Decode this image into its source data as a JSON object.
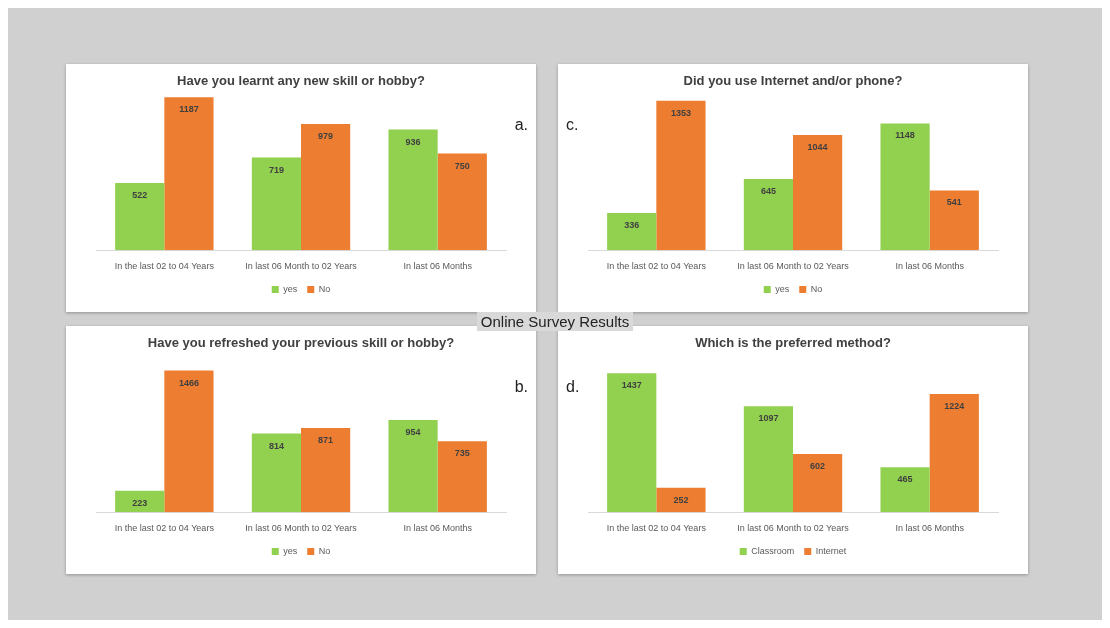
{
  "chart_data": [
    {
      "type": "bar",
      "title": "Have you learnt any new skill or hobby?",
      "categories": [
        "In the last 02 to 04 Years",
        "In last 06 Month to 02 Years",
        "In last 06 Months"
      ],
      "series": [
        {
          "name": "yes",
          "color": "#92d050",
          "values": [
            522,
            719,
            936
          ]
        },
        {
          "name": "No",
          "color": "#ed7d31",
          "values": [
            1187,
            979,
            750
          ]
        }
      ],
      "data_labels": true,
      "legend": "bottom",
      "grid": false,
      "annotations": [
        "a.",
        "Online Survey Results"
      ]
    },
    {
      "type": "bar",
      "title": "Did you use Internet and/or phone?",
      "categories": [
        "In the last 02 to 04 Years",
        "In last 06 Month to 02 Years",
        "In last 06 Months"
      ],
      "series": [
        {
          "name": "yes",
          "color": "#92d050",
          "values": [
            336,
            645,
            1148
          ]
        },
        {
          "name": "No",
          "color": "#ed7d31",
          "values": [
            1353,
            1044,
            541
          ]
        }
      ],
      "data_labels": true,
      "legend": "bottom",
      "grid": false,
      "annotations": [
        "c."
      ]
    },
    {
      "type": "bar",
      "title": "Have you refreshed your previous skill or hobby?",
      "categories": [
        "In the last 02 to 04 Years",
        "In last 06 Month to 02 Years",
        "In last 06 Months"
      ],
      "series": [
        {
          "name": "yes",
          "color": "#92d050",
          "values": [
            223,
            814,
            954
          ]
        },
        {
          "name": "No",
          "color": "#ed7d31",
          "values": [
            1466,
            871,
            735
          ]
        }
      ],
      "data_labels": true,
      "legend": "bottom",
      "grid": false,
      "annotations": [
        "b."
      ]
    },
    {
      "type": "bar",
      "title": "Which is the preferred method?",
      "categories": [
        "In the last 02 to 04 Years",
        "In last 06 Month to 02 Years",
        "In last 06 Months"
      ],
      "series": [
        {
          "name": "Classroom",
          "color": "#92d050",
          "values": [
            1437,
            1097,
            465
          ]
        },
        {
          "name": "Internet",
          "color": "#ed7d31",
          "values": [
            252,
            602,
            1224
          ]
        }
      ],
      "data_labels": true,
      "legend": "bottom",
      "grid": false,
      "annotations": [
        "d."
      ]
    }
  ]
}
